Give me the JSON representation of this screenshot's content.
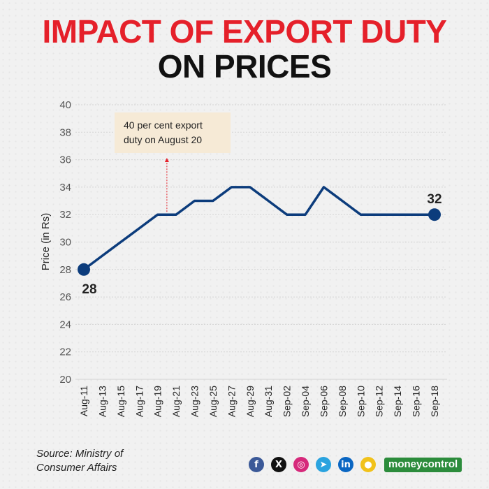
{
  "header": {
    "title_line1": "IMPACT OF EXPORT DUTY",
    "title_line2": "ON PRICES"
  },
  "colors": {
    "title_accent": "#e5202a",
    "line": "#0c3c7c",
    "grid": "#d4d4d4",
    "annotation_box": "#f6ead6",
    "annotation_arrow": "#e5202a"
  },
  "chart_data": {
    "type": "line",
    "ylabel": "Price (in Rs)",
    "xlabel": "",
    "ylim": [
      20,
      40
    ],
    "yticks": [
      20,
      22,
      24,
      26,
      28,
      30,
      32,
      34,
      36,
      38,
      40
    ],
    "grid": "horizontal",
    "x": [
      "Aug-11",
      "Aug-12",
      "Aug-13",
      "Aug-14",
      "Aug-15",
      "Aug-16",
      "Aug-17",
      "Aug-18",
      "Aug-19",
      "Aug-20",
      "Aug-21",
      "Aug-22",
      "Aug-23",
      "Aug-24",
      "Aug-25",
      "Aug-26",
      "Aug-27",
      "Aug-28",
      "Aug-29",
      "Aug-30",
      "Aug-31",
      "Sep-01",
      "Sep-02",
      "Sep-03",
      "Sep-04",
      "Sep-05",
      "Sep-06",
      "Sep-07",
      "Sep-08",
      "Sep-09",
      "Sep-10",
      "Sep-11",
      "Sep-12",
      "Sep-13",
      "Sep-14",
      "Sep-15",
      "Sep-16",
      "Sep-17",
      "Sep-18"
    ],
    "xtick_labels": [
      "Aug-11",
      "Aug-13",
      "Aug-15",
      "Aug-17",
      "Aug-19",
      "Aug-21",
      "Aug-23",
      "Aug-25",
      "Aug-27",
      "Aug-29",
      "Aug-31",
      "Sep-02",
      "Sep-04",
      "Sep-06",
      "Sep-08",
      "Sep-10",
      "Sep-12",
      "Sep-14",
      "Sep-16",
      "Sep-18"
    ],
    "series": [
      {
        "values": [
          28,
          28.5,
          29,
          29.5,
          30,
          30.5,
          31,
          31.5,
          32,
          32,
          32,
          32.5,
          33,
          33,
          33,
          33.5,
          34,
          34,
          34,
          33.5,
          33,
          32.5,
          32,
          32,
          32,
          33,
          34,
          33.5,
          33,
          32.5,
          32,
          32,
          32,
          32,
          32,
          32,
          32,
          32,
          32
        ]
      }
    ],
    "end_labels": {
      "start": "28",
      "end": "32"
    },
    "annotation": {
      "text_line1": "40 per cent export",
      "text_line2": "duty on August 20",
      "x": "Aug-20"
    }
  },
  "footer": {
    "source_line1": "Source: Ministry of",
    "source_line2": "Consumer Affairs",
    "brand": "moneycontrol",
    "social_icons": [
      {
        "name": "facebook-icon",
        "glyph": "f",
        "color": "#3b5998"
      },
      {
        "name": "x-icon",
        "glyph": "X",
        "color": "#111111"
      },
      {
        "name": "instagram-icon",
        "glyph": "◎",
        "color": "#d6297b"
      },
      {
        "name": "telegram-icon",
        "glyph": "➤",
        "color": "#2aa3df"
      },
      {
        "name": "linkedin-icon",
        "glyph": "in",
        "color": "#0a66c2"
      },
      {
        "name": "koo-icon",
        "glyph": "●",
        "color": "#f1c21b"
      }
    ]
  }
}
